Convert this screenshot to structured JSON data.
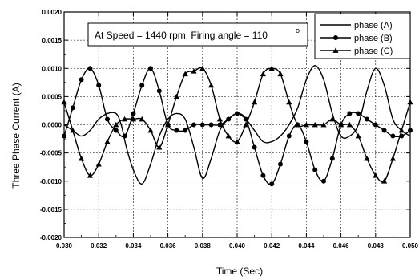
{
  "chart_data": {
    "type": "line",
    "title": "",
    "xlabel": "Time (Sec)",
    "ylabel": "Three Phase Current (A)",
    "xlim": [
      0.03,
      0.05
    ],
    "ylim": [
      -0.002,
      0.002
    ],
    "x_ticks": [
      "0.030",
      "0.032",
      "0.034",
      "0.036",
      "0.038",
      "0.040",
      "0.042",
      "0.044",
      "0.046",
      "0.048",
      "0.050"
    ],
    "y_ticks": [
      "0.0020",
      "0.0015",
      "0.0010",
      "0.0005",
      "0.0000",
      "-0.0005",
      "-0.0010",
      "-0.0015",
      "-0.0020"
    ],
    "grid": true,
    "legend_position": "top-right",
    "annotation": "At Speed = 1440 rpm, Firing angle = 110",
    "annotation_superscript": "o",
    "series": [
      {
        "name": "phase (A)",
        "marker": "none",
        "x": [
          0.03,
          0.0305,
          0.031,
          0.0315,
          0.032,
          0.0325,
          0.033,
          0.0333,
          0.0336,
          0.034,
          0.0345,
          0.035,
          0.0355,
          0.036,
          0.0365,
          0.037,
          0.0375,
          0.038,
          0.0385,
          0.039,
          0.0395,
          0.04,
          0.0405,
          0.041,
          0.0415,
          0.042,
          0.0425,
          0.043,
          0.0435,
          0.044,
          0.0445,
          0.045,
          0.0455,
          0.046,
          0.0465,
          0.047,
          0.0475,
          0.048,
          0.0485,
          0.049,
          0.0495,
          0.05
        ],
        "y": [
          0.0,
          -0.0001,
          -0.0002,
          -0.0001,
          0.0001,
          0.0002,
          0.0002,
          0.0,
          -0.0004,
          -0.0008,
          -0.00105,
          -0.0007,
          -0.0002,
          0.0001,
          0.0002,
          0.0001,
          -0.0004,
          -0.00095,
          -0.0006,
          -0.0001,
          0.0001,
          0.0002,
          0.0001,
          -0.0001,
          -0.0003,
          -0.0003,
          -0.0002,
          0.0,
          0.0003,
          0.0008,
          0.00105,
          0.0008,
          0.0002,
          -0.0002,
          -0.0002,
          0.0,
          0.0006,
          0.001,
          0.0007,
          0.0001,
          -0.0001,
          -0.0002
        ]
      },
      {
        "name": "phase (B)",
        "marker": "circle",
        "x": [
          0.03,
          0.0305,
          0.031,
          0.0315,
          0.032,
          0.0325,
          0.033,
          0.0335,
          0.034,
          0.0345,
          0.035,
          0.0355,
          0.036,
          0.0365,
          0.037,
          0.0375,
          0.038,
          0.0385,
          0.039,
          0.0395,
          0.04,
          0.0405,
          0.041,
          0.0415,
          0.042,
          0.0425,
          0.043,
          0.0435,
          0.044,
          0.0445,
          0.045,
          0.0455,
          0.046,
          0.0465,
          0.047,
          0.0475,
          0.048,
          0.0485,
          0.049,
          0.0495,
          0.05
        ],
        "y": [
          -0.0002,
          0.0003,
          0.0008,
          0.001,
          0.0007,
          0.0001,
          -0.0001,
          -0.0002,
          0.0002,
          0.0007,
          0.001,
          0.0006,
          0.0,
          -0.0001,
          -0.0001,
          0.0,
          0.0,
          0.0,
          0.0,
          0.0001,
          0.0002,
          0.0001,
          -0.0004,
          -0.0009,
          -0.00105,
          -0.0007,
          -0.0002,
          0.0,
          -0.0003,
          -0.0008,
          -0.001,
          -0.0006,
          0.0,
          0.0002,
          0.0002,
          0.0001,
          0.0,
          -0.0001,
          -0.0002,
          -0.0002,
          -0.0001
        ]
      },
      {
        "name": "phase (C)",
        "marker": "triangle",
        "x": [
          0.03,
          0.0305,
          0.031,
          0.0315,
          0.032,
          0.0325,
          0.033,
          0.0335,
          0.034,
          0.0345,
          0.035,
          0.0355,
          0.036,
          0.0365,
          0.037,
          0.0375,
          0.038,
          0.0385,
          0.039,
          0.0395,
          0.04,
          0.0405,
          0.041,
          0.0415,
          0.042,
          0.0425,
          0.043,
          0.0435,
          0.044,
          0.0445,
          0.045,
          0.0455,
          0.046,
          0.0465,
          0.047,
          0.0475,
          0.048,
          0.0485,
          0.049,
          0.0495,
          0.05
        ],
        "y": [
          0.0004,
          -0.0001,
          -0.0006,
          -0.0009,
          -0.0007,
          -0.0003,
          0.0,
          0.0001,
          0.0001,
          0.0001,
          -0.0001,
          -0.0004,
          0.0,
          0.0005,
          0.0009,
          0.00095,
          0.001,
          0.0007,
          0.0001,
          -0.0002,
          -0.0003,
          0.0,
          0.0004,
          0.0009,
          0.001,
          0.0009,
          0.0004,
          0.0,
          0.0,
          0.0,
          0.0,
          0.0001,
          0.0,
          0.0,
          -0.0002,
          -0.0006,
          -0.0009,
          -0.001,
          -0.0006,
          -0.0001,
          0.0004
        ]
      }
    ]
  }
}
